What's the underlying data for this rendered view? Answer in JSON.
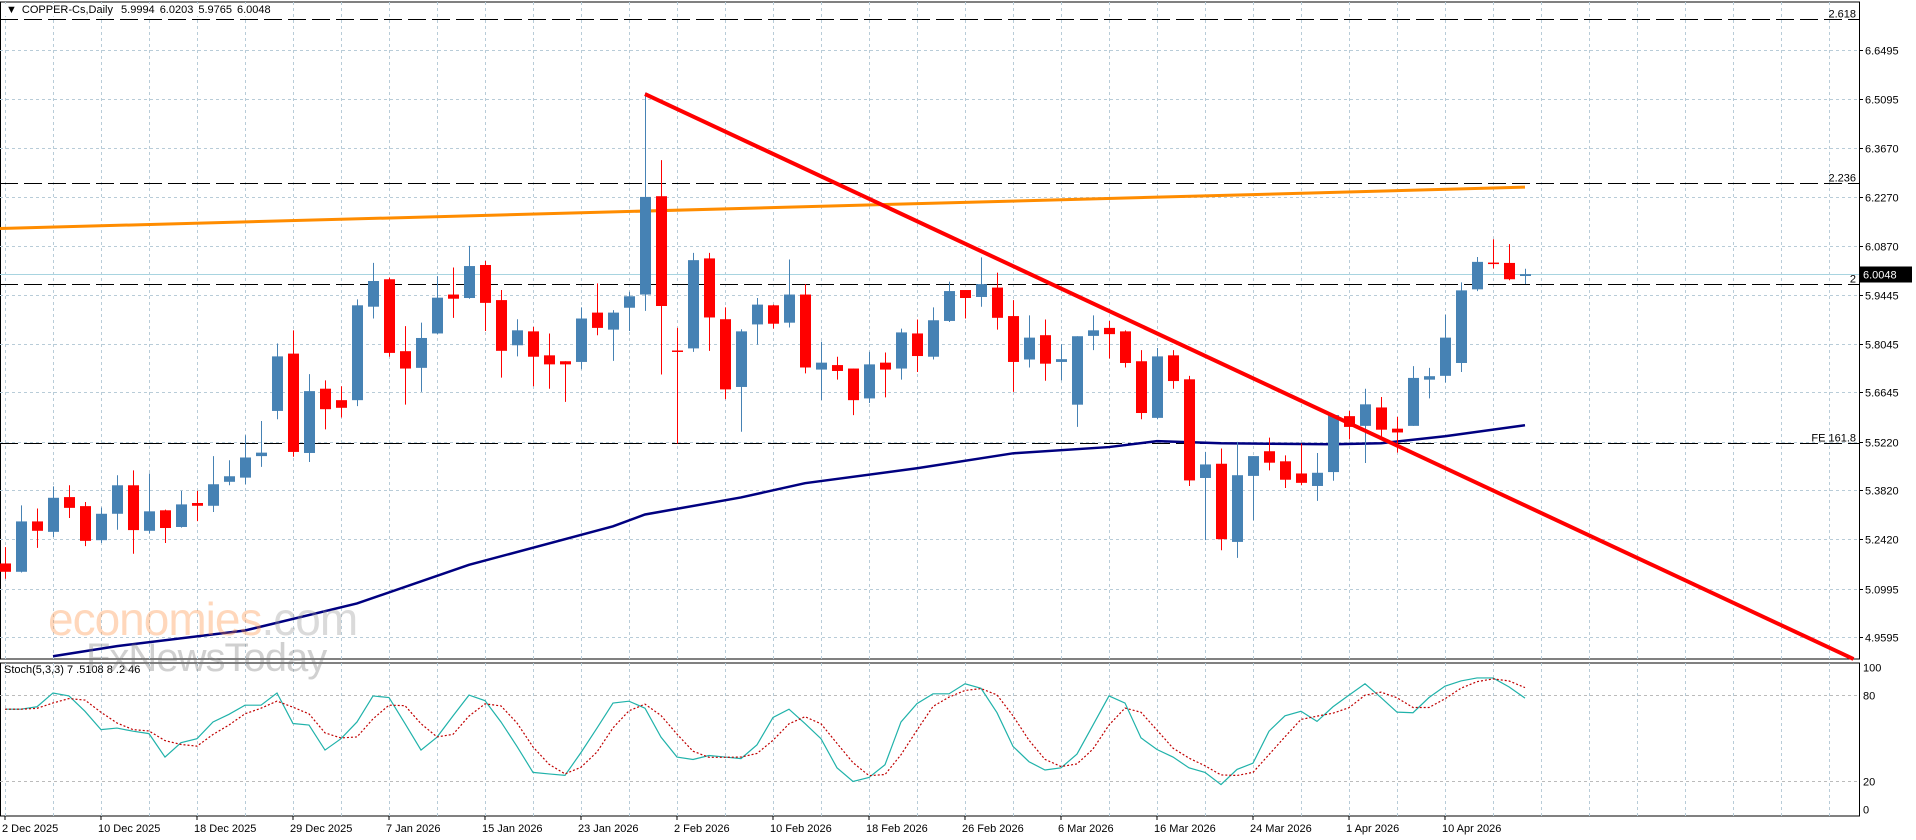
{
  "header": {
    "menu_icon": "triangle-down-icon",
    "symbol": "COPPER-Cs,Daily",
    "open": "5.9994",
    "high": "6.0203",
    "low": "5.9765",
    "close": "6.0048"
  },
  "current_price_label": "6.0048",
  "stoch_label": "Stoch(5,3,3) 7 .5108 8 .2 46",
  "watermark": {
    "part1": "economies",
    "part2": ".com",
    "line2": "FxNewsToday"
  },
  "colors": {
    "bull": "#4682B4",
    "bear": "#FF0000",
    "ma_long": "#FF8C00",
    "ma_short": "#000080",
    "trendline": "#FF0000",
    "stoch_k": "#20B2AA",
    "stoch_d": "#C00000",
    "grid": "#B8CCD8",
    "bid_line": "#A8D4E0"
  },
  "chart_data": [
    {
      "type": "candlestick",
      "title": "COPPER-Cs,Daily",
      "ylim": [
        4.897,
        6.788
      ],
      "grid": true,
      "y_ticks": [
        "6.6495",
        "6.5095",
        "6.3670",
        "6.2270",
        "6.0870",
        "5.9445",
        "5.8045",
        "5.6645",
        "5.5220",
        "5.3820",
        "5.2420",
        "5.0995",
        "4.9595"
      ],
      "x_ticks": [
        {
          "date": "2025-12-02",
          "label": "2 Dec 2025"
        },
        {
          "date": "2025-12-10",
          "label": "10 Dec 2025"
        },
        {
          "date": "2025-12-18",
          "label": "18 Dec 2025"
        },
        {
          "date": "2025-12-29",
          "label": "29 Dec 2025"
        },
        {
          "date": "2026-01-07",
          "label": "7 Jan 2026"
        },
        {
          "date": "2026-01-15",
          "label": "15 Jan 2026"
        },
        {
          "date": "2026-01-23",
          "label": "23 Jan 2026"
        },
        {
          "date": "2026-02-02",
          "label": "2 Feb 2026"
        },
        {
          "date": "2026-02-10",
          "label": "10 Feb 2026"
        },
        {
          "date": "2026-02-18",
          "label": "18 Feb 2026"
        },
        {
          "date": "2026-02-26",
          "label": "26 Feb 2026"
        },
        {
          "date": "2026-03-06",
          "label": "6 Mar 2026"
        },
        {
          "date": "2026-03-16",
          "label": "16 Mar 2026"
        },
        {
          "date": "2026-03-24",
          "label": "24 Mar 2026"
        },
        {
          "date": "2026-04-01",
          "label": "1 Apr 2026"
        },
        {
          "date": "2026-04-10",
          "label": "10 Apr 2026"
        }
      ],
      "candles_ohlc": [
        [
          "2025-12-02",
          5.172,
          5.219,
          5.128,
          5.148
        ],
        [
          "2025-12-03",
          5.148,
          5.339,
          5.146,
          5.293
        ],
        [
          "2025-12-04",
          5.293,
          5.33,
          5.217,
          5.266
        ],
        [
          "2025-12-05",
          5.263,
          5.394,
          5.248,
          5.361
        ],
        [
          "2025-12-08",
          5.363,
          5.397,
          5.303,
          5.332
        ],
        [
          "2025-12-09",
          5.337,
          5.349,
          5.222,
          5.237
        ],
        [
          "2025-12-10",
          5.239,
          5.333,
          5.231,
          5.315
        ],
        [
          "2025-12-11",
          5.315,
          5.426,
          5.269,
          5.397
        ],
        [
          "2025-12-12",
          5.397,
          5.44,
          5.2,
          5.268
        ],
        [
          "2025-12-15",
          5.266,
          5.431,
          5.258,
          5.322
        ],
        [
          "2025-12-16",
          5.325,
          5.327,
          5.231,
          5.274
        ],
        [
          "2025-12-17",
          5.277,
          5.381,
          5.275,
          5.342
        ],
        [
          "2025-12-18",
          5.346,
          5.381,
          5.294,
          5.338
        ],
        [
          "2025-12-19",
          5.338,
          5.481,
          5.32,
          5.4
        ],
        [
          "2025-12-22",
          5.407,
          5.469,
          5.397,
          5.423
        ],
        [
          "2025-12-23",
          5.419,
          5.541,
          5.4,
          5.477
        ],
        [
          "2025-12-24",
          5.481,
          5.582,
          5.45,
          5.491
        ],
        [
          "2025-12-26",
          5.611,
          5.805,
          5.587,
          5.768
        ],
        [
          "2025-12-29",
          5.776,
          5.843,
          5.479,
          5.493
        ],
        [
          "2025-12-30",
          5.49,
          5.717,
          5.464,
          5.668
        ],
        [
          "2025-12-31",
          5.675,
          5.699,
          5.558,
          5.616
        ],
        [
          "2026-01-02",
          5.642,
          5.682,
          5.592,
          5.62
        ],
        [
          "2026-01-05",
          5.642,
          5.932,
          5.625,
          5.915
        ],
        [
          "2026-01-06",
          5.911,
          6.037,
          5.877,
          5.985
        ],
        [
          "2026-01-07",
          5.99,
          5.995,
          5.767,
          5.778
        ],
        [
          "2026-01-08",
          5.783,
          5.855,
          5.629,
          5.733
        ],
        [
          "2026-01-09",
          5.735,
          5.865,
          5.666,
          5.821
        ],
        [
          "2026-01-12",
          5.834,
          5.999,
          5.832,
          5.937
        ],
        [
          "2026-01-13",
          5.946,
          6.024,
          5.879,
          5.934
        ],
        [
          "2026-01-14",
          5.936,
          6.086,
          5.934,
          6.028
        ],
        [
          "2026-01-15",
          6.031,
          6.043,
          5.841,
          5.922
        ],
        [
          "2026-01-16",
          5.93,
          5.959,
          5.707,
          5.784
        ],
        [
          "2026-01-19",
          5.8,
          5.875,
          5.768,
          5.843
        ],
        [
          "2026-01-20",
          5.84,
          5.853,
          5.682,
          5.767
        ],
        [
          "2026-01-21",
          5.771,
          5.834,
          5.675,
          5.745
        ],
        [
          "2026-01-22",
          5.754,
          5.754,
          5.637,
          5.745
        ],
        [
          "2026-01-23",
          5.752,
          5.909,
          5.731,
          5.877
        ],
        [
          "2026-01-26",
          5.894,
          5.978,
          5.829,
          5.85
        ],
        [
          "2026-01-27",
          5.845,
          5.901,
          5.755,
          5.894
        ],
        [
          "2026-01-28",
          5.908,
          5.954,
          5.841,
          5.941
        ],
        [
          "2026-01-29",
          5.946,
          6.527,
          5.899,
          6.227
        ],
        [
          "2026-01-30",
          6.229,
          6.333,
          5.716,
          5.913
        ],
        [
          "2026-02-02",
          5.785,
          5.85,
          5.517,
          5.781
        ],
        [
          "2026-02-03",
          5.791,
          6.066,
          5.781,
          6.045
        ],
        [
          "2026-02-04",
          6.05,
          6.066,
          5.784,
          5.88
        ],
        [
          "2026-02-05",
          5.875,
          5.909,
          5.645,
          5.673
        ],
        [
          "2026-02-06",
          5.68,
          5.846,
          5.551,
          5.84
        ],
        [
          "2026-02-09",
          5.86,
          5.936,
          5.802,
          5.917
        ],
        [
          "2026-02-10",
          5.915,
          5.917,
          5.848,
          5.862
        ],
        [
          "2026-02-11",
          5.865,
          6.047,
          5.851,
          5.946
        ],
        [
          "2026-02-12",
          5.946,
          5.976,
          5.719,
          5.736
        ],
        [
          "2026-02-13",
          5.73,
          5.81,
          5.642,
          5.75
        ],
        [
          "2026-02-16",
          5.743,
          5.767,
          5.701,
          5.726
        ],
        [
          "2026-02-17",
          5.733,
          5.733,
          5.599,
          5.642
        ],
        [
          "2026-02-18",
          5.647,
          5.781,
          5.634,
          5.745
        ],
        [
          "2026-02-19",
          5.75,
          5.779,
          5.65,
          5.73
        ],
        [
          "2026-02-20",
          5.733,
          5.848,
          5.701,
          5.837
        ],
        [
          "2026-02-23",
          5.834,
          5.874,
          5.723,
          5.769
        ],
        [
          "2026-02-24",
          5.767,
          5.909,
          5.759,
          5.872
        ],
        [
          "2026-02-25",
          5.87,
          5.983,
          5.867,
          5.956
        ],
        [
          "2026-02-26",
          5.959,
          5.959,
          5.877,
          5.936
        ],
        [
          "2026-02-27",
          5.939,
          6.053,
          5.911,
          5.976
        ],
        [
          "2026-03-02",
          5.966,
          6.009,
          5.845,
          5.879
        ],
        [
          "2026-03-03",
          5.884,
          5.93,
          5.666,
          5.752
        ],
        [
          "2026-03-04",
          5.759,
          5.886,
          5.736,
          5.822
        ],
        [
          "2026-03-05",
          5.829,
          5.874,
          5.698,
          5.747
        ],
        [
          "2026-03-06",
          5.752,
          5.803,
          5.699,
          5.76
        ],
        [
          "2026-03-09",
          5.629,
          5.826,
          5.565,
          5.826
        ],
        [
          "2026-03-10",
          5.827,
          5.886,
          5.786,
          5.843
        ],
        [
          "2026-03-11",
          5.85,
          5.87,
          5.762,
          5.832
        ],
        [
          "2026-03-12",
          5.84,
          5.843,
          5.736,
          5.749
        ],
        [
          "2026-03-13",
          5.754,
          5.786,
          5.587,
          5.605
        ],
        [
          "2026-03-16",
          5.591,
          5.792,
          5.587,
          5.768
        ],
        [
          "2026-03-17",
          5.771,
          5.786,
          5.675,
          5.697
        ],
        [
          "2026-03-18",
          5.702,
          5.712,
          5.395,
          5.411
        ],
        [
          "2026-03-19",
          5.418,
          5.493,
          5.239,
          5.457
        ],
        [
          "2026-03-20",
          5.459,
          5.503,
          5.21,
          5.242
        ],
        [
          "2026-03-23",
          5.234,
          5.522,
          5.188,
          5.426
        ],
        [
          "2026-03-24",
          5.424,
          5.481,
          5.296,
          5.481
        ],
        [
          "2026-03-25",
          5.495,
          5.534,
          5.44,
          5.462
        ],
        [
          "2026-03-26",
          5.466,
          5.483,
          5.389,
          5.413
        ],
        [
          "2026-03-27",
          5.431,
          5.517,
          5.397,
          5.404
        ],
        [
          "2026-03-30",
          5.395,
          5.49,
          5.352,
          5.433
        ],
        [
          "2026-03-31",
          5.435,
          5.599,
          5.41,
          5.599
        ],
        [
          "2026-04-01",
          5.596,
          5.611,
          5.529,
          5.565
        ],
        [
          "2026-04-02",
          5.568,
          5.675,
          5.461,
          5.63
        ],
        [
          "2026-04-06",
          5.621,
          5.651,
          5.527,
          5.557
        ],
        [
          "2026-04-07",
          5.56,
          5.594,
          5.491,
          5.549
        ],
        [
          "2026-04-08",
          5.568,
          5.74,
          5.568,
          5.706
        ],
        [
          "2026-04-09",
          5.701,
          5.735,
          5.647,
          5.711
        ],
        [
          "2026-04-10",
          5.712,
          5.888,
          5.693,
          5.822
        ],
        [
          "2026-04-13",
          5.749,
          5.981,
          5.723,
          5.958
        ],
        [
          "2026-04-14",
          5.961,
          6.054,
          5.956,
          6.04
        ],
        [
          "2026-04-15",
          6.038,
          6.105,
          6.021,
          6.034
        ],
        [
          "2026-04-16",
          6.037,
          6.091,
          5.987,
          5.99
        ],
        [
          "2026-04-17",
          5.9994,
          6.0203,
          5.9765,
          6.0048
        ]
      ],
      "moving_average_orange": [
        [
          "2025-12-02",
          6.136
        ],
        [
          "2026-04-17",
          6.255
        ]
      ],
      "moving_average_navy": [
        [
          "2025-12-05",
          4.905
        ],
        [
          "2025-12-11",
          4.934
        ],
        [
          "2025-12-23",
          4.979
        ],
        [
          "2026-01-05",
          5.057
        ],
        [
          "2026-01-14",
          5.168
        ],
        [
          "2026-01-27",
          5.279
        ],
        [
          "2026-01-29",
          5.313
        ],
        [
          "2026-02-06",
          5.362
        ],
        [
          "2026-02-12",
          5.403
        ],
        [
          "2026-02-23",
          5.446
        ],
        [
          "2026-03-03",
          5.489
        ],
        [
          "2026-03-11",
          5.507
        ],
        [
          "2026-03-16",
          5.524
        ],
        [
          "2026-03-20",
          5.518
        ],
        [
          "2026-03-31",
          5.515
        ],
        [
          "2026-04-06",
          5.518
        ],
        [
          "2026-04-10",
          5.538
        ],
        [
          "2026-04-17",
          5.57
        ]
      ],
      "trendline": [
        [
          "2026-01-29",
          6.523
        ],
        [
          "2026-04-17",
          5.339
        ]
      ],
      "horizontal_levels": [
        {
          "label": "2.618",
          "value": 6.739
        },
        {
          "label": "2.236",
          "value": 6.267
        },
        {
          "label": "2",
          "value": 5.976
        },
        {
          "label": "FE 161.8",
          "value": 5.518
        }
      ],
      "current_price": 6.0048
    },
    {
      "type": "line",
      "title": "Stoch(5,3,3)",
      "ylim": [
        -4.9,
        102.8
      ],
      "y_ticks": [
        "100",
        "80",
        "20",
        "0"
      ],
      "levels": [
        80,
        20
      ],
      "k_values": [
        70.3,
        70.3,
        72,
        81.7,
        79.6,
        68.8,
        55.9,
        57,
        54.8,
        53.1,
        36.6,
        46.7,
        49.5,
        61.3,
        66.7,
        73.1,
        73.1,
        81.7,
        60.2,
        59.1,
        41.5,
        49.5,
        61.3,
        79.6,
        78.5,
        60.2,
        41.5,
        50.6,
        65.6,
        80.2,
        76.3,
        61.3,
        44.1,
        25.8,
        24.7,
        23.7,
        39.8,
        57,
        74.6,
        75.9,
        71,
        50.6,
        36.6,
        34.9,
        37.7,
        36.6,
        35.5,
        45.2,
        64.5,
        70.3,
        60.2,
        49.5,
        29.0,
        19.4,
        22.2,
        31.2,
        61.3,
        74.2,
        81.1,
        81.1,
        88.2,
        85.0,
        67.8,
        44.1,
        33.3,
        27.5,
        29.0,
        38.7,
        59.1,
        79.6,
        74.6,
        50.1,
        41.9,
        36.6,
        29.0,
        25.8,
        17.2,
        27.9,
        32.3,
        54.8,
        65.6,
        68.8,
        61.7,
        72,
        80.2,
        88.2,
        78.5,
        68.2,
        67.8,
        78.5,
        86.5,
        90.2,
        92.3,
        92.3,
        86.0,
        78.1
      ],
      "d_period": 3
    }
  ]
}
